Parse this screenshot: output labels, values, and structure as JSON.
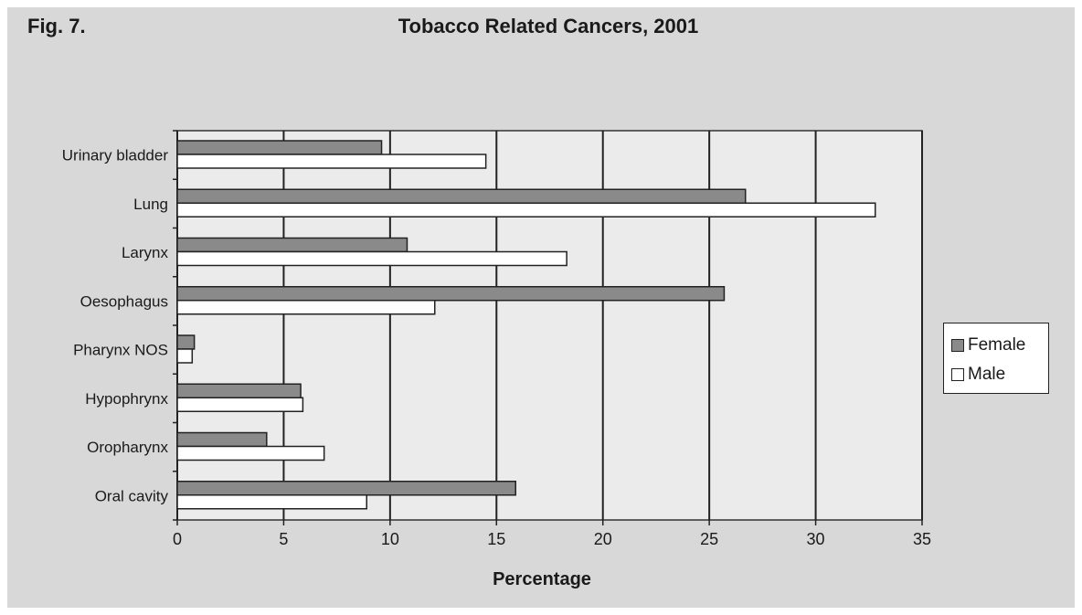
{
  "figure_label": "Fig. 7.",
  "chart_data": {
    "type": "bar",
    "orientation": "horizontal",
    "title": "Tobacco Related Cancers, 2001",
    "xlabel": "Percentage",
    "ylabel": "",
    "xlim": [
      0,
      35
    ],
    "xticks": [
      0,
      5,
      10,
      15,
      20,
      25,
      30,
      35
    ],
    "grid": true,
    "legend_position": "right",
    "categories": [
      "Urinary bladder",
      "Lung",
      "Larynx",
      "Oesophagus",
      "Pharynx NOS",
      "Hypophrynx",
      "Oropharynx",
      "Oral cavity"
    ],
    "series": [
      {
        "name": "Female",
        "color": "#8a8a8a",
        "values": [
          9.6,
          26.7,
          10.8,
          25.7,
          0.8,
          5.8,
          4.2,
          15.9
        ]
      },
      {
        "name": "Male",
        "color": "#ffffff",
        "values": [
          14.5,
          32.8,
          18.3,
          12.1,
          0.7,
          5.9,
          6.9,
          8.9
        ]
      }
    ]
  }
}
